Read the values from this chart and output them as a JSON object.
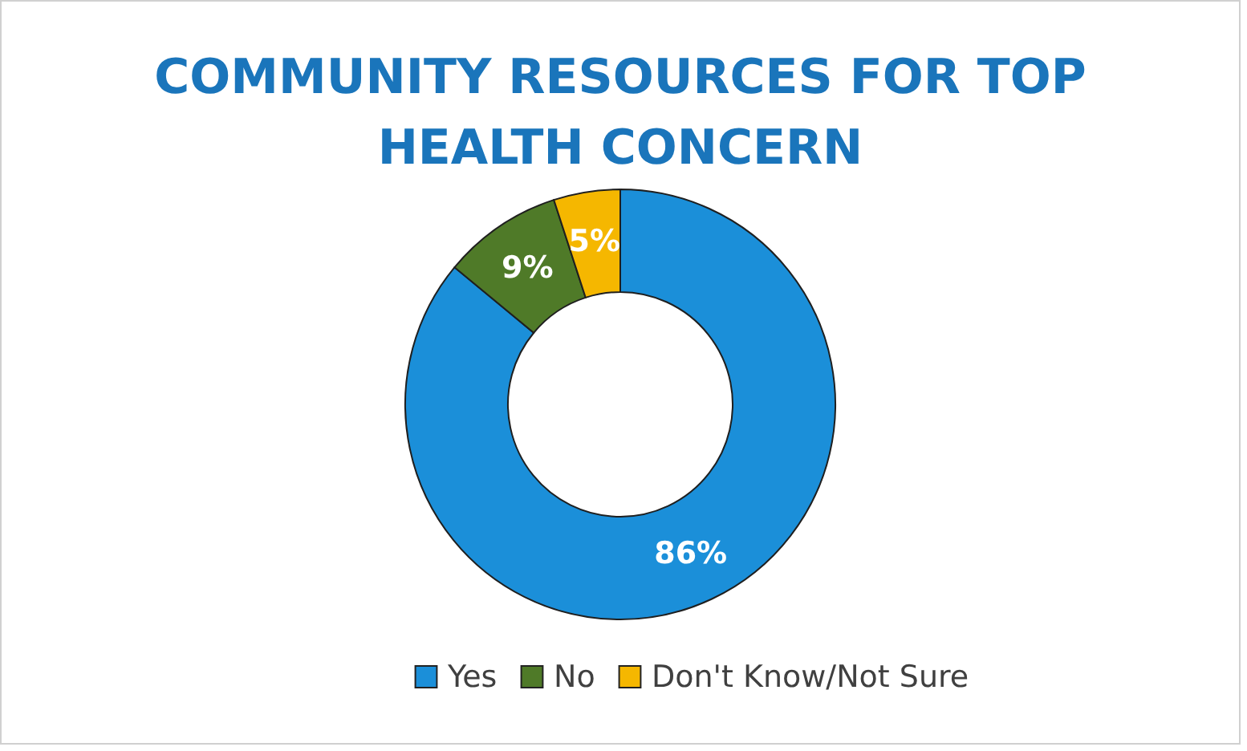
{
  "chart_data": {
    "type": "donut",
    "title": "COMMUNITY RESOURCES FOR TOP HEALTH CONCERN",
    "categories": [
      "Yes",
      "No",
      "Don't Know/Not Sure"
    ],
    "values": [
      86,
      9,
      5
    ],
    "colors": [
      "#1b8fd9",
      "#4f7a28",
      "#f5b700"
    ],
    "value_labels": [
      "86%",
      "9%",
      "5%"
    ],
    "legend": "bottom"
  }
}
